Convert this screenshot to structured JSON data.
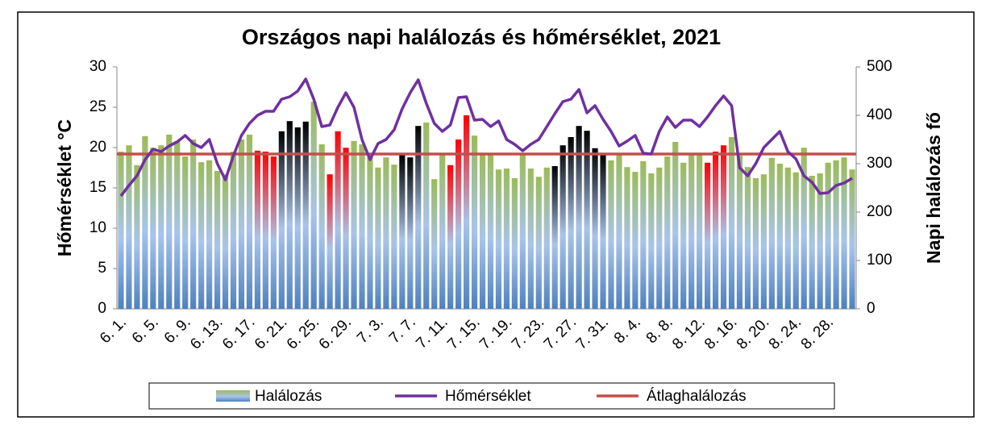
{
  "chart_data": {
    "type": "bar",
    "title": "Országos napi halálozás és hőmérséklet, 2021",
    "y_label": "Hőmérséklet °C",
    "y2_label": "Napi halálozás fő",
    "ylim": [
      0,
      30
    ],
    "yticks": [
      0,
      5,
      10,
      15,
      20,
      25,
      30
    ],
    "y2lim": [
      0,
      500
    ],
    "y2ticks": [
      0,
      100,
      200,
      300,
      400,
      500
    ],
    "legend": "bottom",
    "categories": [
      "6. 1.",
      null,
      null,
      null,
      "6. 5.",
      null,
      null,
      null,
      "6. 9.",
      null,
      null,
      null,
      "6. 13.",
      null,
      null,
      null,
      "6. 17.",
      null,
      null,
      null,
      "6. 21.",
      null,
      null,
      null,
      "6. 25.",
      null,
      null,
      null,
      "6. 29.",
      null,
      null,
      null,
      "7. 3.",
      null,
      null,
      null,
      "7. 7.",
      null,
      null,
      null,
      "7. 11.",
      null,
      null,
      null,
      "7. 15.",
      null,
      null,
      null,
      "7. 19.",
      null,
      null,
      null,
      "7. 23.",
      null,
      null,
      null,
      "7. 27.",
      null,
      null,
      null,
      "7. 31.",
      null,
      null,
      null,
      "8. 4.",
      null,
      null,
      null,
      "8. 8.",
      null,
      null,
      null,
      "8. 12.",
      null,
      null,
      null,
      "8. 16.",
      null,
      null,
      null,
      "8. 20.",
      null,
      null,
      null,
      "8. 24.",
      null,
      null,
      null,
      "8. 28.",
      null,
      null,
      null
    ],
    "series": [
      {
        "name": "Halálozás",
        "type": "bar",
        "axis": "y2",
        "color": "#9bbb59",
        "values": [
          325,
          338,
          297,
          357,
          333,
          338,
          360,
          347,
          315,
          350,
          303,
          307,
          285,
          278,
          325,
          350,
          360,
          327,
          325,
          315,
          367,
          388,
          375,
          387,
          428,
          340,
          278,
          367,
          333,
          347,
          340,
          313,
          292,
          313,
          298,
          318,
          313,
          378,
          385,
          268,
          320,
          297,
          350,
          400,
          358,
          320,
          322,
          288,
          290,
          270,
          322,
          290,
          273,
          292,
          295,
          338,
          355,
          378,
          368,
          332,
          320,
          307,
          322,
          293,
          283,
          305,
          280,
          292,
          315,
          345,
          302,
          322,
          322,
          302,
          325,
          338,
          355,
          317,
          293,
          270,
          278,
          312,
          300,
          292,
          282,
          333,
          275,
          280,
          302,
          307,
          313,
          288
        ],
        "colors": [
          "#9bbb59",
          "#9bbb59",
          "#9bbb59",
          "#9bbb59",
          "#9bbb59",
          "#9bbb59",
          "#9bbb59",
          "#9bbb59",
          "#9bbb59",
          "#9bbb59",
          "#9bbb59",
          "#9bbb59",
          "#9bbb59",
          "#9bbb59",
          "#9bbb59",
          "#9bbb59",
          "#9bbb59",
          "#ff0000",
          "#ff0000",
          "#ff0000",
          "#000000",
          "#000000",
          "#000000",
          "#000000",
          "#9bbb59",
          "#9bbb59",
          "#ff0000",
          "#ff0000",
          "#ff0000",
          "#9bbb59",
          "#9bbb59",
          "#9bbb59",
          "#9bbb59",
          "#9bbb59",
          "#9bbb59",
          "#000000",
          "#000000",
          "#000000",
          "#9bbb59",
          "#9bbb59",
          "#9bbb59",
          "#ff0000",
          "#ff0000",
          "#ff0000",
          "#9bbb59",
          "#9bbb59",
          "#9bbb59",
          "#9bbb59",
          "#9bbb59",
          "#9bbb59",
          "#9bbb59",
          "#9bbb59",
          "#9bbb59",
          "#9bbb59",
          "#000000",
          "#000000",
          "#000000",
          "#000000",
          "#000000",
          "#000000",
          "#000000",
          "#9bbb59",
          "#9bbb59",
          "#9bbb59",
          "#9bbb59",
          "#9bbb59",
          "#9bbb59",
          "#9bbb59",
          "#9bbb59",
          "#9bbb59",
          "#9bbb59",
          "#9bbb59",
          "#9bbb59",
          "#ff0000",
          "#ff0000",
          "#ff0000",
          "#9bbb59",
          "#9bbb59",
          "#9bbb59",
          "#9bbb59",
          "#9bbb59",
          "#9bbb59",
          "#9bbb59",
          "#9bbb59",
          "#9bbb59",
          "#9bbb59",
          "#9bbb59",
          "#9bbb59",
          "#9bbb59",
          "#9bbb59",
          "#9bbb59",
          "#9bbb59"
        ]
      },
      {
        "name": "Hőmérséklet",
        "type": "line",
        "color": "#7030a0",
        "values": [
          14,
          15.3,
          16.5,
          18.5,
          19.8,
          19.5,
          20.2,
          20.7,
          21.5,
          20.5,
          20,
          21,
          18,
          16,
          19,
          21.5,
          23,
          24,
          24.5,
          24.5,
          26,
          26.3,
          27,
          28.5,
          26,
          22.6,
          22.8,
          25,
          26.8,
          25,
          21,
          18.5,
          20.5,
          21,
          22.2,
          24.8,
          26.8,
          28.4,
          25.5,
          23,
          22,
          22.8,
          26.2,
          26.3,
          23.4,
          23.5,
          22.6,
          23.3,
          21,
          20.4,
          19.6,
          20.4,
          21,
          22.6,
          24.2,
          25.7,
          26,
          27.2,
          24.3,
          25.2,
          23.5,
          22,
          20.2,
          20.8,
          21.5,
          19.3,
          19.2,
          22,
          23.8,
          22.5,
          23.4,
          23.4,
          22.6,
          23.8,
          25.2,
          26.4,
          25.2,
          17.5,
          16.5,
          18,
          20,
          21,
          22,
          19.5,
          18.6,
          16.5,
          15.7,
          14.3,
          14.4,
          15.3,
          15.6,
          16.2
        ]
      }
    ],
    "reference_lines": [
      {
        "name": "Átlaghalálozás",
        "value": 320,
        "axis": "y2",
        "color": "#c0504d"
      }
    ]
  }
}
